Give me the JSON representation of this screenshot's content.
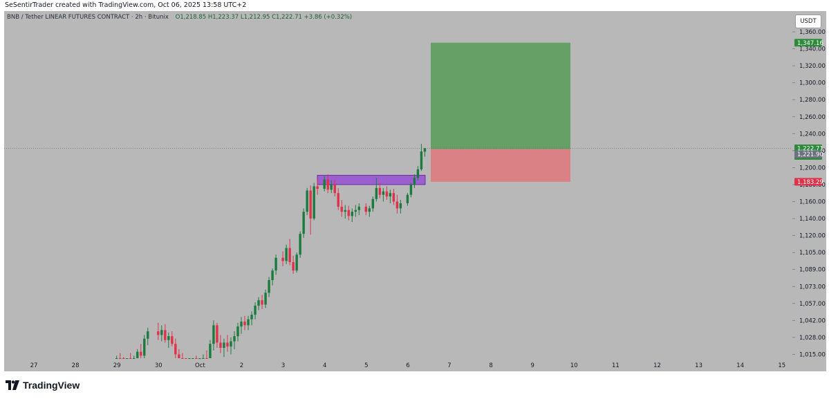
{
  "header": {
    "text": "SeSentirTrader created with TradingView.com, Oct 06, 2025 13:58 UTC+2"
  },
  "legend": {
    "symbol": "BNB / Tether LINEAR FUTURES CONTRACT · 2h · Bitunix",
    "ohlc": "O1,218.85 H1,223.37 L1,212.95 C1,222.71 +3.86 (+0.32%)"
  },
  "currency_button": "USDT",
  "brand": {
    "name": "TradingView"
  },
  "colors": {
    "up": "#1b7a3e",
    "down": "#e0314a",
    "background": "#b8b8b8",
    "target_zone": "#66a066",
    "stop_zone": "#d98184",
    "resistance_zone": "#9b5fcf",
    "last_price": "#2e8b3c",
    "target_label": "#2e8b3c",
    "stop_label": "#e0314a",
    "crosshair_label": "#6e7180"
  },
  "chart_data": {
    "type": "candlestick",
    "symbol": "BNB/USDT",
    "timeframe": "2h",
    "x_ticks": [
      "27",
      "28",
      "29",
      "30",
      "Oct",
      "2",
      "3",
      "4",
      "5",
      "6",
      "7",
      "8",
      "9",
      "10",
      "11",
      "12",
      "13",
      "14",
      "15"
    ],
    "y_ticks": [
      1015,
      1028,
      1042,
      1057,
      1073,
      1089,
      1105,
      1120,
      1140,
      1160,
      1180,
      1200,
      1220,
      1240,
      1260,
      1280,
      1300,
      1320,
      1340,
      1360
    ],
    "y_tick_labels": [
      "1,015.00",
      "1,028.00",
      "1,042.00",
      "1,057.00",
      "1,073.00",
      "1,089.00",
      "1,105.00",
      "1,120.00",
      "1,140.00",
      "1,160.00",
      "1,180.00",
      "1,200.00",
      "1,220.00",
      "1,240.00",
      "1,260.00",
      "1,280.00",
      "1,300.00",
      "1,320.00",
      "1,340.00",
      "1,360.00"
    ],
    "scale": "log",
    "ylim": [
      1000,
      1370
    ],
    "candles": [
      {
        "d": "09-29",
        "o": 1008,
        "h": 1014,
        "l": 1004,
        "c": 1012
      },
      {
        "d": "09-29",
        "o": 1012,
        "h": 1016,
        "l": 1006,
        "c": 1009
      },
      {
        "d": "09-29",
        "o": 1009,
        "h": 1013,
        "l": 1003,
        "c": 1006
      },
      {
        "d": "09-29",
        "o": 1006,
        "h": 1012,
        "l": 1001,
        "c": 1010
      },
      {
        "d": "09-29",
        "o": 1010,
        "h": 1016,
        "l": 1006,
        "c": 1008
      },
      {
        "d": "09-29",
        "o": 1008,
        "h": 1014,
        "l": 1004,
        "c": 1011
      },
      {
        "d": "09-29",
        "o": 1011,
        "h": 1019,
        "l": 1008,
        "c": 1017
      },
      {
        "d": "09-29",
        "o": 1017,
        "h": 1023,
        "l": 1012,
        "c": 1014
      },
      {
        "d": "09-29",
        "o": 1014,
        "h": 1030,
        "l": 1011,
        "c": 1027
      },
      {
        "d": "09-29",
        "o": 1027,
        "h": 1036,
        "l": 1022,
        "c": 1033
      },
      {
        "d": "09-30",
        "o": 1033,
        "h": 1040,
        "l": 1026,
        "c": 1030
      },
      {
        "d": "09-30",
        "o": 1030,
        "h": 1038,
        "l": 1025,
        "c": 1034
      },
      {
        "d": "09-30",
        "o": 1034,
        "h": 1039,
        "l": 1024,
        "c": 1026
      },
      {
        "d": "09-30",
        "o": 1026,
        "h": 1032,
        "l": 1020,
        "c": 1029
      },
      {
        "d": "09-30",
        "o": 1029,
        "h": 1033,
        "l": 1021,
        "c": 1023
      },
      {
        "d": "09-30",
        "o": 1023,
        "h": 1027,
        "l": 1012,
        "c": 1015
      },
      {
        "d": "09-30",
        "o": 1015,
        "h": 1019,
        "l": 1007,
        "c": 1010
      },
      {
        "d": "09-30",
        "o": 1010,
        "h": 1016,
        "l": 1003,
        "c": 1005
      },
      {
        "d": "09-30",
        "o": 1005,
        "h": 1010,
        "l": 998,
        "c": 1001
      },
      {
        "d": "09-30",
        "o": 1001,
        "h": 1008,
        "l": 996,
        "c": 1006
      },
      {
        "d": "09-30",
        "o": 1006,
        "h": 1012,
        "l": 1001,
        "c": 1009
      },
      {
        "d": "09-30",
        "o": 1009,
        "h": 1014,
        "l": 1002,
        "c": 1004
      },
      {
        "d": "10-01",
        "o": 1004,
        "h": 1011,
        "l": 999,
        "c": 1008
      },
      {
        "d": "10-01",
        "o": 1008,
        "h": 1015,
        "l": 1003,
        "c": 1012
      },
      {
        "d": "10-01",
        "o": 1012,
        "h": 1018,
        "l": 1006,
        "c": 1010
      },
      {
        "d": "10-01",
        "o": 1010,
        "h": 1026,
        "l": 1008,
        "c": 1023
      },
      {
        "d": "10-01",
        "o": 1023,
        "h": 1042,
        "l": 1018,
        "c": 1038
      },
      {
        "d": "10-01",
        "o": 1038,
        "h": 1040,
        "l": 1020,
        "c": 1024
      },
      {
        "d": "10-01",
        "o": 1024,
        "h": 1030,
        "l": 1016,
        "c": 1020
      },
      {
        "d": "10-01",
        "o": 1020,
        "h": 1027,
        "l": 1013,
        "c": 1024
      },
      {
        "d": "10-01",
        "o": 1024,
        "h": 1030,
        "l": 1017,
        "c": 1021
      },
      {
        "d": "10-01",
        "o": 1021,
        "h": 1028,
        "l": 1015,
        "c": 1025
      },
      {
        "d": "10-01",
        "o": 1025,
        "h": 1033,
        "l": 1019,
        "c": 1029
      },
      {
        "d": "10-01",
        "o": 1029,
        "h": 1040,
        "l": 1025,
        "c": 1037
      },
      {
        "d": "10-02",
        "o": 1037,
        "h": 1045,
        "l": 1031,
        "c": 1041
      },
      {
        "d": "10-02",
        "o": 1041,
        "h": 1046,
        "l": 1034,
        "c": 1038
      },
      {
        "d": "10-02",
        "o": 1038,
        "h": 1046,
        "l": 1034,
        "c": 1043
      },
      {
        "d": "10-02",
        "o": 1043,
        "h": 1050,
        "l": 1038,
        "c": 1047
      },
      {
        "d": "10-02",
        "o": 1047,
        "h": 1058,
        "l": 1043,
        "c": 1055
      },
      {
        "d": "10-02",
        "o": 1055,
        "h": 1063,
        "l": 1051,
        "c": 1060
      },
      {
        "d": "10-02",
        "o": 1060,
        "h": 1065,
        "l": 1052,
        "c": 1056
      },
      {
        "d": "10-02",
        "o": 1056,
        "h": 1070,
        "l": 1053,
        "c": 1067
      },
      {
        "d": "10-02",
        "o": 1067,
        "h": 1082,
        "l": 1063,
        "c": 1079
      },
      {
        "d": "10-02",
        "o": 1079,
        "h": 1090,
        "l": 1074,
        "c": 1088
      },
      {
        "d": "10-02",
        "o": 1088,
        "h": 1103,
        "l": 1084,
        "c": 1100
      },
      {
        "d": "10-03",
        "o": 1100,
        "h": 1106,
        "l": 1092,
        "c": 1097
      },
      {
        "d": "10-03",
        "o": 1097,
        "h": 1112,
        "l": 1094,
        "c": 1109
      },
      {
        "d": "10-03",
        "o": 1109,
        "h": 1117,
        "l": 1093,
        "c": 1096
      },
      {
        "d": "10-03",
        "o": 1096,
        "h": 1102,
        "l": 1085,
        "c": 1088
      },
      {
        "d": "10-03",
        "o": 1088,
        "h": 1105,
        "l": 1086,
        "c": 1103
      },
      {
        "d": "10-03",
        "o": 1103,
        "h": 1125,
        "l": 1100,
        "c": 1122
      },
      {
        "d": "10-03",
        "o": 1122,
        "h": 1152,
        "l": 1118,
        "c": 1148
      },
      {
        "d": "10-03",
        "o": 1148,
        "h": 1176,
        "l": 1144,
        "c": 1173
      },
      {
        "d": "10-03",
        "o": 1173,
        "h": 1179,
        "l": 1121,
        "c": 1140
      },
      {
        "d": "10-03",
        "o": 1140,
        "h": 1182,
        "l": 1138,
        "c": 1178
      },
      {
        "d": "10-03",
        "o": 1178,
        "h": 1186,
        "l": 1168,
        "c": 1175
      },
      {
        "d": "10-04",
        "o": 1175,
        "h": 1190,
        "l": 1172,
        "c": 1186
      },
      {
        "d": "10-04",
        "o": 1186,
        "h": 1192,
        "l": 1170,
        "c": 1174
      },
      {
        "d": "10-04",
        "o": 1174,
        "h": 1185,
        "l": 1170,
        "c": 1180
      },
      {
        "d": "10-04",
        "o": 1180,
        "h": 1186,
        "l": 1166,
        "c": 1170
      },
      {
        "d": "10-04",
        "o": 1170,
        "h": 1176,
        "l": 1150,
        "c": 1154
      },
      {
        "d": "10-04",
        "o": 1154,
        "h": 1162,
        "l": 1142,
        "c": 1148
      },
      {
        "d": "10-04",
        "o": 1148,
        "h": 1156,
        "l": 1140,
        "c": 1150
      },
      {
        "d": "10-04",
        "o": 1150,
        "h": 1155,
        "l": 1138,
        "c": 1143
      },
      {
        "d": "10-04",
        "o": 1143,
        "h": 1152,
        "l": 1136,
        "c": 1148
      },
      {
        "d": "10-04",
        "o": 1148,
        "h": 1156,
        "l": 1142,
        "c": 1150
      },
      {
        "d": "10-04",
        "o": 1150,
        "h": 1158,
        "l": 1144,
        "c": 1154
      },
      {
        "d": "10-05",
        "o": 1154,
        "h": 1158,
        "l": 1144,
        "c": 1148
      },
      {
        "d": "10-05",
        "o": 1148,
        "h": 1155,
        "l": 1142,
        "c": 1152
      },
      {
        "d": "10-05",
        "o": 1152,
        "h": 1166,
        "l": 1148,
        "c": 1163
      },
      {
        "d": "10-05",
        "o": 1163,
        "h": 1188,
        "l": 1160,
        "c": 1176
      },
      {
        "d": "10-05",
        "o": 1176,
        "h": 1182,
        "l": 1164,
        "c": 1168
      },
      {
        "d": "10-05",
        "o": 1168,
        "h": 1176,
        "l": 1160,
        "c": 1172
      },
      {
        "d": "10-05",
        "o": 1172,
        "h": 1178,
        "l": 1162,
        "c": 1166
      },
      {
        "d": "10-05",
        "o": 1166,
        "h": 1174,
        "l": 1158,
        "c": 1170
      },
      {
        "d": "10-05",
        "o": 1170,
        "h": 1175,
        "l": 1156,
        "c": 1160
      },
      {
        "d": "10-05",
        "o": 1160,
        "h": 1168,
        "l": 1146,
        "c": 1152
      },
      {
        "d": "10-05",
        "o": 1152,
        "h": 1162,
        "l": 1146,
        "c": 1158
      },
      {
        "d": "10-06",
        "o": 1158,
        "h": 1170,
        "l": 1155,
        "c": 1168
      },
      {
        "d": "10-06",
        "o": 1168,
        "h": 1182,
        "l": 1165,
        "c": 1180
      },
      {
        "d": "10-06",
        "o": 1180,
        "h": 1192,
        "l": 1176,
        "c": 1188
      },
      {
        "d": "10-06",
        "o": 1188,
        "h": 1202,
        "l": 1185,
        "c": 1198
      },
      {
        "d": "10-06",
        "o": 1198,
        "h": 1228,
        "l": 1196,
        "c": 1219
      },
      {
        "d": "10-06",
        "o": 1218.85,
        "h": 1223.37,
        "l": 1212.95,
        "c": 1222.71
      }
    ],
    "drawings": {
      "resistance_zone": {
        "from": "10-03",
        "to": "10-06",
        "top": 1191,
        "bottom": 1180
      },
      "long_position": {
        "entry": 1221.9,
        "target": 1347.16,
        "stop": 1183.29,
        "from": "10-06",
        "to": "10-10"
      }
    },
    "price_labels": [
      {
        "value": 1347.16,
        "text": "1,347.16",
        "kind": "target"
      },
      {
        "value": 1222.71,
        "text": "1,222.71",
        "sub": "01:43",
        "kind": "last"
      },
      {
        "value": 1221.9,
        "text": "1,221.90",
        "kind": "crosshair"
      },
      {
        "value": 1183.29,
        "text": "1,183.29",
        "kind": "stop"
      }
    ]
  }
}
